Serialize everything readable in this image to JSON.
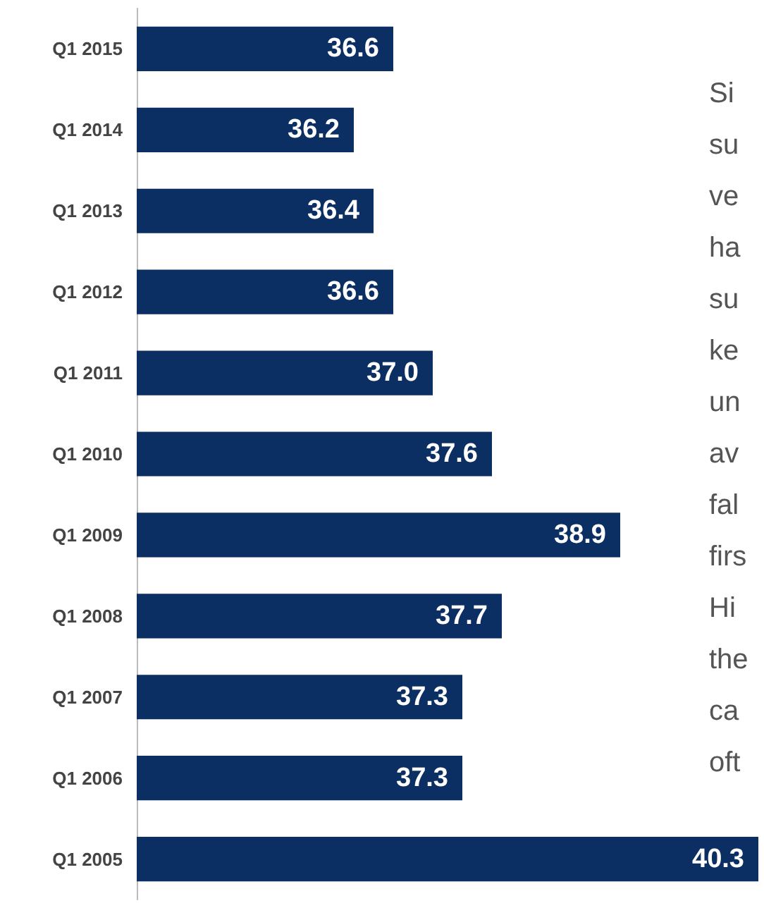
{
  "chart_data": {
    "type": "bar",
    "orientation": "horizontal",
    "categories": [
      "Q1 2015",
      "Q1 2014",
      "Q1 2013",
      "Q1 2012",
      "Q1 2011",
      "Q1 2010",
      "Q1 2009",
      "Q1 2008",
      "Q1 2007",
      "Q1 2006",
      "Q1 2005"
    ],
    "values": [
      36.6,
      36.2,
      36.4,
      36.6,
      37.0,
      37.6,
      38.9,
      37.7,
      37.3,
      37.3,
      40.3
    ],
    "value_labels": [
      "36.6",
      "36.2",
      "36.4",
      "36.6",
      "37.0",
      "37.6",
      "38.9",
      "37.7",
      "37.3",
      "37.3",
      "40.3"
    ],
    "color": "#0b2e63",
    "xlim": [
      34,
      40.3
    ],
    "tick_labels": "y",
    "annotations": [
      "Si\nsu\nve\nha\nsu\nke\nun\nav\nfal\nfirs\nHi\nthe\nca\noft"
    ]
  }
}
